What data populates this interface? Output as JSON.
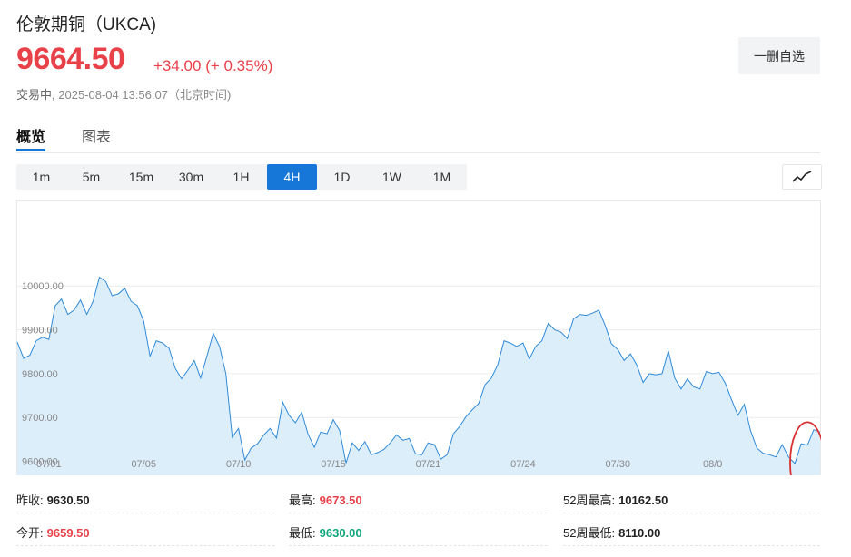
{
  "header": {
    "title": "伦敦期铜（UKCA)",
    "price": "9664.50",
    "change": "+34.00 (+ 0.35%)",
    "status": "交易中,",
    "timestamp": "2025-08-04 13:56:07（北京时间)",
    "watch_button": "一删自选",
    "up_color": "#e8414a",
    "down_color": "#12a77a"
  },
  "tabs": [
    {
      "label": "概览",
      "active": true
    },
    {
      "label": "图表",
      "active": false
    }
  ],
  "intervals": [
    {
      "label": "1m",
      "active": false
    },
    {
      "label": "5m",
      "active": false
    },
    {
      "label": "15m",
      "active": false
    },
    {
      "label": "30m",
      "active": false
    },
    {
      "label": "1H",
      "active": false
    },
    {
      "label": "4H",
      "active": true
    },
    {
      "label": "1D",
      "active": false
    },
    {
      "label": "1W",
      "active": false
    },
    {
      "label": "1M",
      "active": false
    }
  ],
  "chart_type_icon": "line-chart-icon",
  "chart_data": {
    "type": "area",
    "line_color": "#2f8ad8",
    "fill_color": "#ddeefb",
    "annotation_color": "#d93030",
    "annotation": "red-ellipse-around-last-points",
    "grid": true,
    "ylim": [
      9568,
      10195
    ],
    "y_ticks": [
      10000,
      9900,
      9800,
      9700,
      9600
    ],
    "y_tick_labels": [
      "10000.00",
      "9900.00",
      "9800.00",
      "9700.00",
      "9600.00"
    ],
    "x_tick_labels": [
      "07/01",
      "07/05",
      "07/10",
      "07/15",
      "07/21",
      "07/24",
      "07/30",
      "08/0"
    ],
    "x_tick_index": [
      5,
      20,
      35,
      50,
      65,
      80,
      95,
      110
    ],
    "values": [
      9872,
      9835,
      9842,
      9875,
      9883,
      9878,
      9955,
      9970,
      9935,
      9945,
      9968,
      9935,
      9965,
      10020,
      10010,
      9978,
      9982,
      9995,
      9965,
      9955,
      9920,
      9840,
      9875,
      9870,
      9858,
      9812,
      9788,
      9808,
      9830,
      9790,
      9840,
      9892,
      9862,
      9800,
      9655,
      9675,
      9603,
      9630,
      9640,
      9660,
      9675,
      9653,
      9735,
      9705,
      9688,
      9712,
      9662,
      9632,
      9667,
      9663,
      9695,
      9670,
      9596,
      9642,
      9625,
      9645,
      9615,
      9620,
      9627,
      9642,
      9660,
      9648,
      9652,
      9617,
      9615,
      9642,
      9638,
      9605,
      9615,
      9663,
      9680,
      9702,
      9718,
      9732,
      9775,
      9790,
      9820,
      9875,
      9870,
      9862,
      9870,
      9833,
      9862,
      9875,
      9915,
      9900,
      9895,
      9880,
      9925,
      9935,
      9933,
      9938,
      9945,
      9910,
      9868,
      9855,
      9830,
      9845,
      9820,
      9780,
      9800,
      9797,
      9800,
      9852,
      9790,
      9765,
      9788,
      9770,
      9765,
      9805,
      9800,
      9803,
      9778,
      9740,
      9705,
      9730,
      9670,
      9630,
      9618,
      9615,
      9610,
      9638,
      9610,
      9595,
      9640,
      9637,
      9672,
      9667
    ]
  },
  "stats": [
    {
      "label": "昨收:",
      "value": "9630.50",
      "tone": "neutral"
    },
    {
      "label": "最高:",
      "value": "9673.50",
      "tone": "up"
    },
    {
      "label": "52周最高:",
      "value": "10162.50",
      "tone": "neutral"
    },
    {
      "label": "今开:",
      "value": "9659.50",
      "tone": "up"
    },
    {
      "label": "最低:",
      "value": "9630.00",
      "tone": "down"
    },
    {
      "label": "52周最低:",
      "value": "8110.00",
      "tone": "neutral"
    }
  ]
}
